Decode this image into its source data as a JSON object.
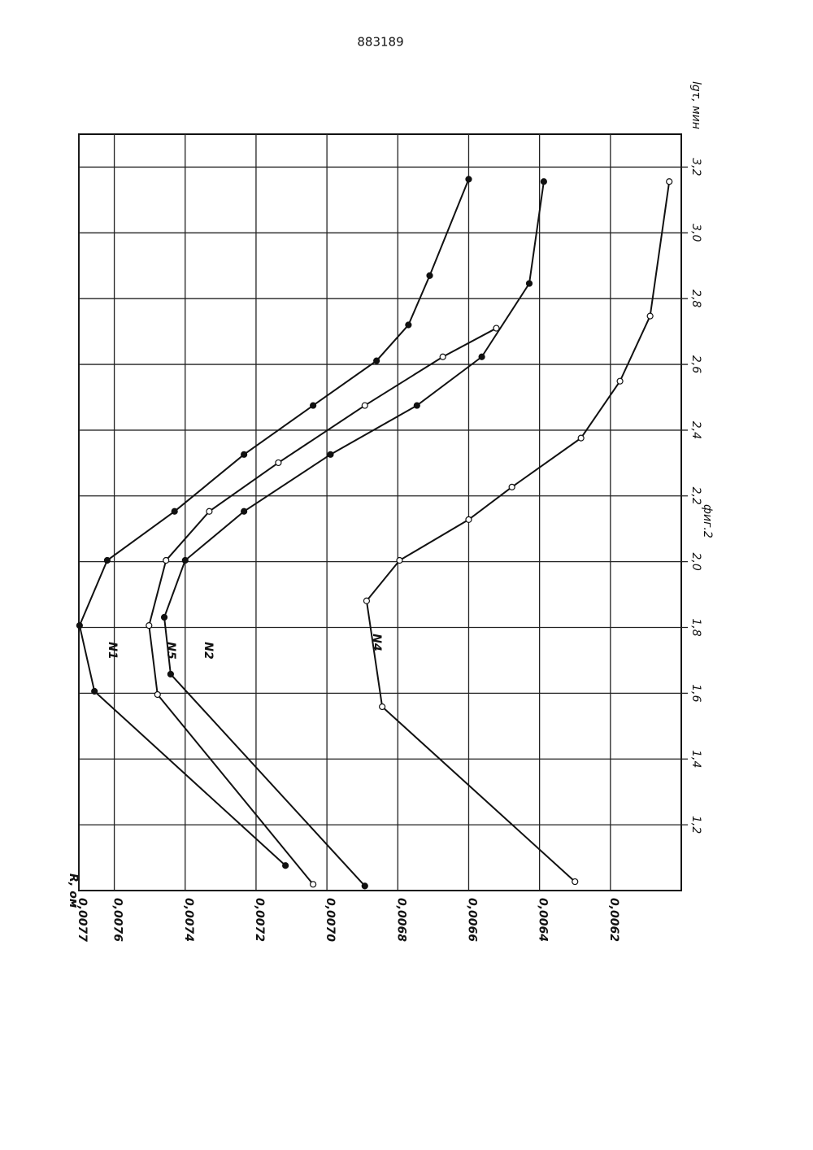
{
  "page_number": "883189",
  "chart_data": {
    "type": "line",
    "caption": "фиг.2",
    "x_label": "lgτ, мин",
    "y_label": "R, ом",
    "xlim": [
      1.0,
      3.3
    ],
    "ylim": [
      0.006,
      0.0077
    ],
    "xticks": [
      {
        "value": 1.2,
        "label": "1,2"
      },
      {
        "value": 1.4,
        "label": "1,4"
      },
      {
        "value": 1.6,
        "label": "1,6"
      },
      {
        "value": 1.8,
        "label": "1,8"
      },
      {
        "value": 2.0,
        "label": "2,0"
      },
      {
        "value": 2.2,
        "label": "2,2"
      },
      {
        "value": 2.4,
        "label": "2,4"
      },
      {
        "value": 2.6,
        "label": "2,6"
      },
      {
        "value": 2.8,
        "label": "2,8"
      },
      {
        "value": 3.0,
        "label": "3,0"
      },
      {
        "value": 3.2,
        "label": "3,2"
      }
    ],
    "yticks": [
      {
        "value": 0.0077,
        "label": "0,0077"
      },
      {
        "value": 0.0076,
        "label": "0,0076"
      },
      {
        "value": 0.0074,
        "label": "0,0074"
      },
      {
        "value": 0.0072,
        "label": "0,0072"
      },
      {
        "value": 0.007,
        "label": "0,0070"
      },
      {
        "value": 0.0068,
        "label": "0,0068"
      },
      {
        "value": 0.0066,
        "label": "0,0066"
      },
      {
        "value": 0.0064,
        "label": "0,0064"
      },
      {
        "value": 0.0062,
        "label": "0,0062"
      }
    ],
    "grid": true,
    "series": [
      {
        "name": "N1",
        "color": "#111111",
        "x": [
          1.076,
          1.606,
          1.806,
          2.004,
          2.153,
          2.326,
          2.475,
          2.611,
          2.72,
          2.87,
          3.163
        ],
        "values": [
          0.007117,
          0.007656,
          0.007698,
          0.00762,
          0.00743,
          0.007234,
          0.007039,
          0.00686,
          0.00677,
          0.00671,
          0.0066
        ]
      },
      {
        "name": "N5",
        "color": "#111111",
        "x": [
          1.019,
          1.596,
          1.806,
          2.004,
          2.153,
          2.301,
          2.475,
          2.623,
          2.71
        ],
        "values": [
          0.007039,
          0.007478,
          0.007502,
          0.007454,
          0.007332,
          0.007137,
          0.006893,
          0.006673,
          0.006522
        ]
      },
      {
        "name": "N2",
        "color": "#111111",
        "x": [
          1.014,
          1.658,
          1.831,
          2.004,
          2.153,
          2.326,
          2.475,
          2.623,
          2.846,
          3.156
        ],
        "values": [
          0.006893,
          0.007441,
          0.007459,
          0.0074,
          0.007234,
          0.00699,
          0.006746,
          0.006563,
          0.006429,
          0.006388
        ]
      },
      {
        "name": "N4",
        "color": "#111111",
        "x": [
          1.027,
          1.559,
          1.881,
          2.004,
          2.128,
          2.227,
          2.376,
          2.549,
          2.747,
          3.156
        ],
        "values": [
          0.0063,
          0.006844,
          0.006888,
          0.006795,
          0.0066,
          0.006478,
          0.006283,
          0.006173,
          0.006088,
          0.006034
        ]
      }
    ]
  }
}
